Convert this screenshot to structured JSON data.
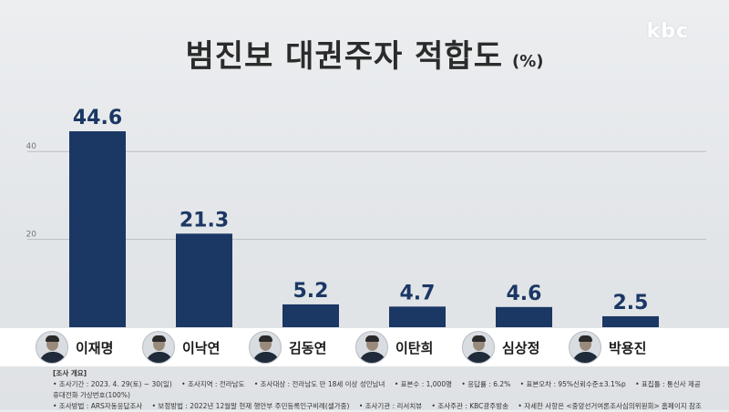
{
  "logo": "kbc",
  "title": {
    "main": "범진보 대권주자 적합도",
    "unit": "(%)"
  },
  "chart_data": {
    "type": "bar",
    "title": "범진보 대권주자 적합도",
    "unit": "(%)",
    "categories": [
      "이재명",
      "이낙연",
      "김동연",
      "이탄희",
      "심상정",
      "박용진"
    ],
    "values": [
      44.6,
      21.3,
      5.2,
      4.7,
      4.6,
      2.5
    ],
    "value_labels": [
      "44.6",
      "21.3",
      "5.2",
      "4.7",
      "4.6",
      "2.5"
    ],
    "yticks": [
      20,
      40
    ],
    "ytick_labels": [
      "20",
      "40"
    ],
    "ylim": [
      0,
      50
    ],
    "grid": true,
    "bar_color": "#1b3764"
  },
  "footer": {
    "heading": "[조사 개요]",
    "row1": [
      "• 조사기간 : 2023. 4. 29(토) ~ 30(일)",
      "• 조사지역 : 전라남도",
      "• 조사대상 : 전라남도 만 18세 이상 성인남녀",
      "• 표본수 : 1,000명",
      "• 응답률 : 6.2%",
      "• 표본오차 : 95%신뢰수준±3.1%p",
      "• 표집틀 : 통신사 제공 휴대전화 가상번호(100%)"
    ],
    "row2": [
      "• 조사방법 : ARS자동응답조사",
      "• 보정방법 : 2022년 12월말 현재 행안부 주민등록인구비례(셀가중)",
      "• 조사기관 : 리서치뷰",
      "• 조사주관 : KBC광주방송",
      "• 자세한 사항은 <중앙선거여론조사심의위원회> 홈페이지 참조"
    ]
  }
}
